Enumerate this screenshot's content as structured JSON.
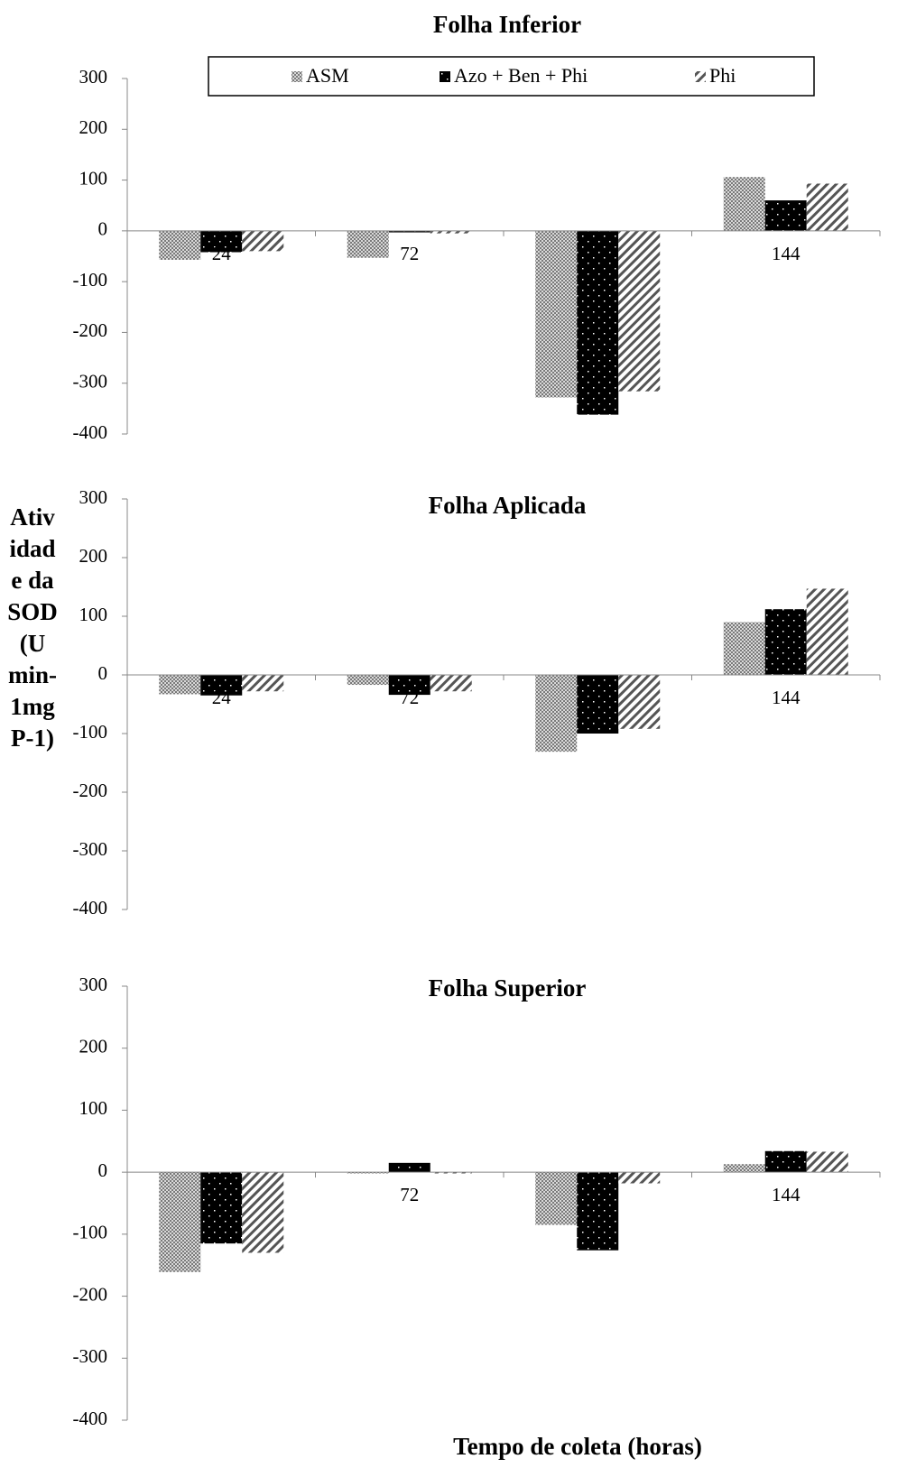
{
  "ylabel": "Atividade da SOD (U min-1mg P-1)",
  "xlabel": "Tempo de coleta (horas)",
  "legend": [
    {
      "label": "ASM",
      "pattern": "checker"
    },
    {
      "label": "Azo + Ben + Phi",
      "pattern": "black-dots"
    },
    {
      "label": "Phi",
      "pattern": "diagonal"
    }
  ],
  "chart_data": [
    {
      "type": "bar",
      "title": "Folha Inferior",
      "categories": [
        "24",
        "72",
        "",
        "144"
      ],
      "ylim": [
        -400,
        300
      ],
      "yticks": [
        300,
        200,
        100,
        0,
        -100,
        -200,
        -300,
        -400
      ],
      "series": [
        {
          "name": "ASM",
          "values": [
            -57,
            -53,
            -328,
            106
          ]
        },
        {
          "name": "Azo + Ben + Phi",
          "values": [
            -42,
            -3,
            -362,
            60
          ]
        },
        {
          "name": "Phi",
          "values": [
            -40,
            -5,
            -316,
            93
          ]
        }
      ]
    },
    {
      "type": "bar",
      "title": "Folha Aplicada",
      "categories": [
        "24",
        "72",
        "",
        "144"
      ],
      "ylim": [
        -400,
        300
      ],
      "yticks": [
        300,
        200,
        100,
        0,
        -100,
        -200,
        -300,
        -400
      ],
      "series": [
        {
          "name": "ASM",
          "values": [
            -33,
            -17,
            -131,
            90
          ]
        },
        {
          "name": "Azo + Ben + Phi",
          "values": [
            -35,
            -34,
            -100,
            112
          ]
        },
        {
          "name": "Phi",
          "values": [
            -28,
            -28,
            -92,
            147
          ]
        }
      ]
    },
    {
      "type": "bar",
      "title": "Folha Superior",
      "categories": [
        "",
        "72",
        "",
        "144"
      ],
      "ylim": [
        -400,
        300
      ],
      "yticks": [
        300,
        200,
        100,
        0,
        -100,
        -200,
        -300,
        -400
      ],
      "series": [
        {
          "name": "ASM",
          "values": [
            -161,
            -2,
            -85,
            13
          ]
        },
        {
          "name": "Azo + Ben + Phi",
          "values": [
            -115,
            15,
            -126,
            34
          ]
        },
        {
          "name": "Phi",
          "values": [
            -130,
            -2,
            -18,
            33
          ]
        }
      ]
    }
  ]
}
